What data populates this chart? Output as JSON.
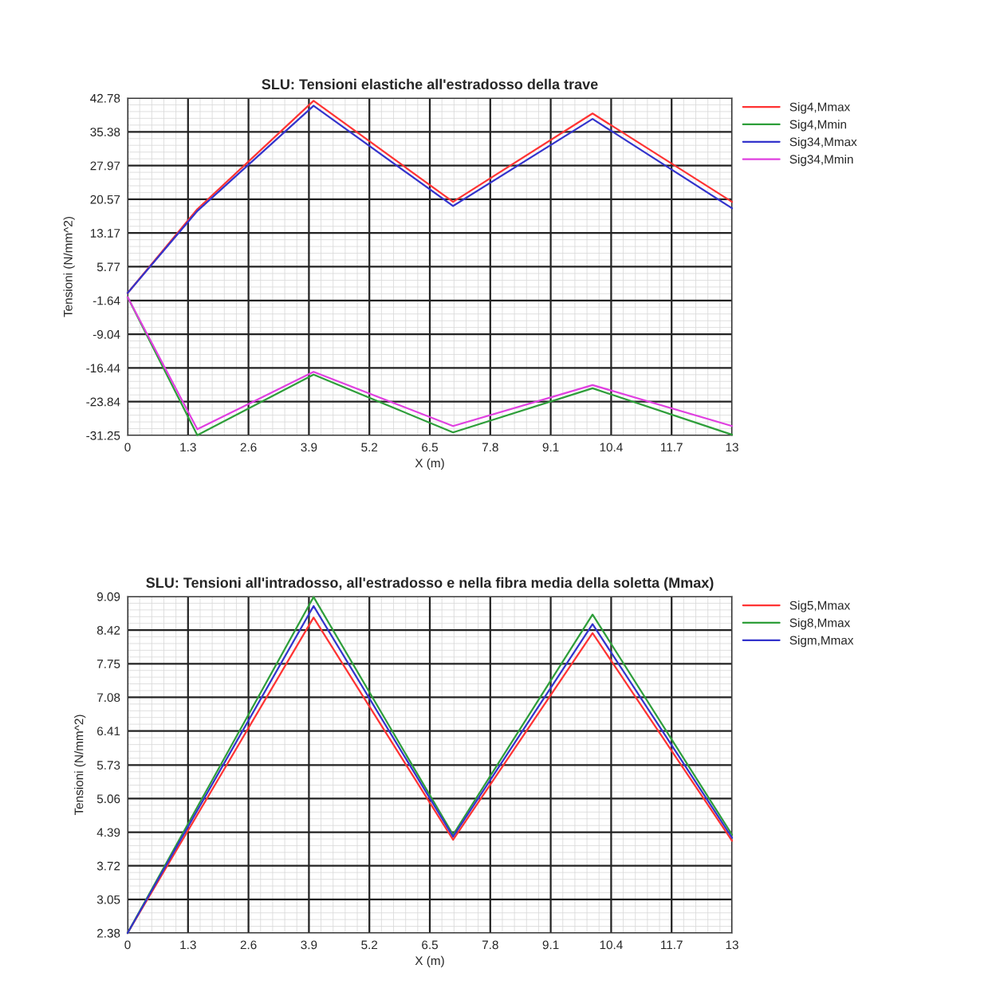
{
  "chart_data": [
    {
      "type": "line",
      "title": "SLU: Tensioni elastiche all'estradosso della trave",
      "xlabel": "X (m)",
      "ylabel": "Tensioni (N/mm^2)",
      "x": [
        0,
        1.5,
        4,
        7,
        10,
        13
      ],
      "series": [
        {
          "name": "Sig4,Mmax",
          "color": "#ff3333",
          "values": [
            0,
            18.4,
            42.2,
            20.0,
            39.4,
            20.0
          ]
        },
        {
          "name": "Sig4,Mmin",
          "color": "#2e9e3a",
          "values": [
            -0.9,
            -31.2,
            -17.9,
            -30.6,
            -20.9,
            -31.1
          ]
        },
        {
          "name": "Sig34,Mmax",
          "color": "#3333cc",
          "values": [
            0,
            18.0,
            41.1,
            19.1,
            38.2,
            18.6
          ]
        },
        {
          "name": "Sig34,Mmin",
          "color": "#e040e0",
          "values": [
            -0.9,
            -29.9,
            -17.3,
            -29.2,
            -20.2,
            -29.2
          ]
        }
      ],
      "xlim": [
        0,
        13
      ],
      "xticks": [
        0,
        1.3,
        2.6,
        3.9,
        5.2,
        6.5,
        7.8,
        9.1,
        10.4,
        11.7,
        13
      ],
      "ylim": [
        -31.25,
        42.78
      ],
      "yticks": [
        -31.25,
        -23.84,
        -16.44,
        -9.04,
        -1.64,
        5.77,
        13.17,
        20.57,
        27.97,
        35.38,
        42.78
      ],
      "grid": true,
      "legend": "top right",
      "marker": "none",
      "line_style": "solid"
    },
    {
      "type": "line",
      "title": "SLU: Tensioni all'intradosso, all'estradosso e nella fibra media della soletta (Mmax)",
      "xlabel": "X (m)",
      "ylabel": "Tensioni (N/mm^2)",
      "x": [
        0,
        4,
        7,
        10,
        13
      ],
      "series": [
        {
          "name": "Sig5,Mmax",
          "color": "#ff3333",
          "values": [
            2.38,
            8.67,
            4.24,
            8.36,
            4.22
          ]
        },
        {
          "name": "Sig8,Mmax",
          "color": "#2e9e3a",
          "values": [
            2.38,
            9.08,
            4.34,
            8.73,
            4.34
          ]
        },
        {
          "name": "Sigm,Mmax",
          "color": "#3333cc",
          "values": [
            2.38,
            8.9,
            4.3,
            8.54,
            4.28
          ]
        }
      ],
      "xlim": [
        0,
        13
      ],
      "xticks": [
        0,
        1.3,
        2.6,
        3.9,
        5.2,
        6.5,
        7.8,
        9.1,
        10.4,
        11.7,
        13
      ],
      "ylim": [
        2.38,
        9.09
      ],
      "yticks": [
        2.38,
        3.05,
        3.72,
        4.39,
        5.06,
        5.73,
        6.41,
        7.08,
        7.75,
        8.42,
        9.09
      ],
      "grid": true,
      "legend": "top right",
      "marker": "none",
      "line_style": "solid"
    }
  ]
}
